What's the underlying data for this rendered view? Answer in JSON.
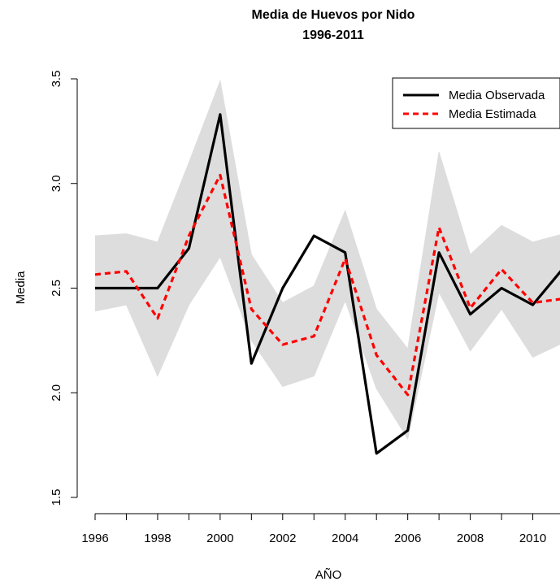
{
  "chart_data": {
    "type": "line",
    "title": "Media de Huevos por Nido",
    "subtitle": "1996-2011",
    "xlabel": "AÑO",
    "ylabel": "Media",
    "xlim": [
      1996,
      2011
    ],
    "ylim": [
      1.5,
      3.5
    ],
    "x_ticks": [
      1996,
      1997,
      1998,
      1999,
      2000,
      2001,
      2002,
      2003,
      2004,
      2005,
      2006,
      2007,
      2008,
      2009,
      2010,
      2011
    ],
    "x_tick_labels": [
      "1996",
      "",
      "1998",
      "",
      "2000",
      "",
      "2002",
      "",
      "2004",
      "",
      "2006",
      "",
      "2008",
      "",
      "2010",
      ""
    ],
    "y_ticks": [
      1.5,
      2.0,
      2.5,
      3.0,
      3.5
    ],
    "y_tick_labels": [
      "1.5",
      "2.0",
      "2.5",
      "3.0",
      "3.5"
    ],
    "grid": false,
    "legend_position": "top-right",
    "x": [
      1996,
      1997,
      1998,
      1999,
      2000,
      2001,
      2002,
      2003,
      2004,
      2005,
      2006,
      2007,
      2008,
      2009,
      2010,
      2011
    ],
    "series": [
      {
        "name": "Media Observada",
        "color": "#000000",
        "style": "solid",
        "values": [
          2.5,
          2.5,
          2.5,
          2.69,
          3.33,
          2.14,
          2.5,
          2.75,
          2.67,
          1.71,
          1.82,
          2.67,
          2.375,
          2.5,
          2.42,
          2.6
        ]
      },
      {
        "name": "Media Estimada",
        "color": "#ff0000",
        "style": "dashed",
        "values": [
          2.565,
          2.58,
          2.355,
          2.75,
          3.04,
          2.4,
          2.23,
          2.27,
          2.64,
          2.18,
          1.99,
          2.79,
          2.405,
          2.59,
          2.43,
          2.45
        ]
      }
    ],
    "envelope": {
      "color": "#dddddd",
      "lower": [
        2.39,
        2.42,
        2.08,
        2.42,
        2.65,
        2.25,
        2.03,
        2.08,
        2.44,
        2.02,
        1.78,
        2.48,
        2.2,
        2.4,
        2.17,
        2.24
      ],
      "upper": [
        2.75,
        2.76,
        2.72,
        3.1,
        3.49,
        2.66,
        2.43,
        2.51,
        2.87,
        2.4,
        2.21,
        3.15,
        2.66,
        2.8,
        2.72,
        2.76
      ]
    }
  }
}
